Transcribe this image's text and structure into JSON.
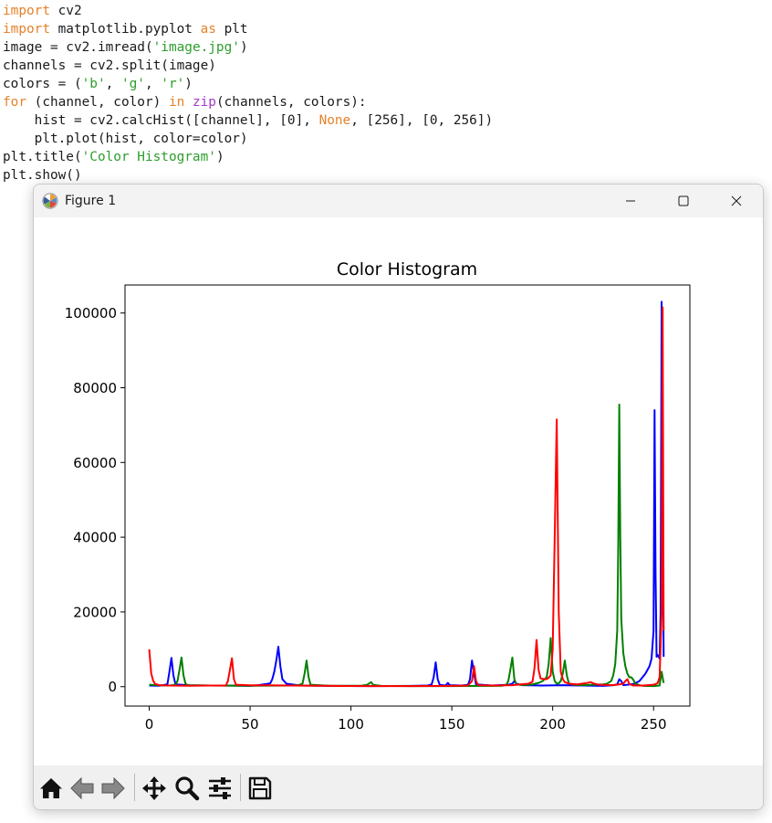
{
  "code_lines": [
    [
      {
        "t": "import",
        "c": "kw"
      },
      {
        "t": " cv2",
        "c": ""
      }
    ],
    [
      {
        "t": "import",
        "c": "kw"
      },
      {
        "t": " matplotlib.pyplot ",
        "c": ""
      },
      {
        "t": "as",
        "c": "kw"
      },
      {
        "t": " plt",
        "c": ""
      }
    ],
    [
      {
        "t": "image = cv2.imread(",
        "c": ""
      },
      {
        "t": "'image.jpg'",
        "c": "st"
      },
      {
        "t": ")",
        "c": ""
      }
    ],
    [
      {
        "t": "channels = cv2.split(image)",
        "c": ""
      }
    ],
    [
      {
        "t": "colors = (",
        "c": ""
      },
      {
        "t": "'b'",
        "c": "st"
      },
      {
        "t": ", ",
        "c": ""
      },
      {
        "t": "'g'",
        "c": "st"
      },
      {
        "t": ", ",
        "c": ""
      },
      {
        "t": "'r'",
        "c": "st"
      },
      {
        "t": ")",
        "c": ""
      }
    ],
    [
      {
        "t": "for",
        "c": "kw"
      },
      {
        "t": " (channel, color) ",
        "c": ""
      },
      {
        "t": "in",
        "c": "kw"
      },
      {
        "t": " ",
        "c": ""
      },
      {
        "t": "zip",
        "c": "fn"
      },
      {
        "t": "(channels, colors):",
        "c": ""
      }
    ],
    [
      {
        "t": "    hist = cv2.calcHist([channel], [0], ",
        "c": ""
      },
      {
        "t": "None",
        "c": "kw"
      },
      {
        "t": ", [256], [0, 256])",
        "c": ""
      }
    ],
    [
      {
        "t": "    plt.plot(hist, color=color)",
        "c": ""
      }
    ],
    [
      {
        "t": "plt.title(",
        "c": ""
      },
      {
        "t": "'Color Histogram'",
        "c": "st"
      },
      {
        "t": ")",
        "c": ""
      }
    ],
    [
      {
        "t": "plt.show()",
        "c": ""
      }
    ]
  ],
  "window": {
    "title": "Figure 1",
    "icon": "matplotlib-icon",
    "controls": [
      "minimize-icon",
      "maximize-icon",
      "close-icon"
    ]
  },
  "toolbar": {
    "buttons": [
      "home-icon",
      "back-icon",
      "forward-icon",
      "pan-icon",
      "zoom-icon",
      "configure-subplots-icon",
      "save-icon"
    ]
  },
  "chart_data": {
    "type": "line",
    "title": "Color Histogram",
    "xlabel": "",
    "ylabel": "",
    "xlim": [
      -12,
      268
    ],
    "ylim": [
      -5200,
      107500
    ],
    "xticks": [
      0,
      50,
      100,
      150,
      200,
      250
    ],
    "yticks": [
      0,
      20000,
      40000,
      60000,
      80000,
      100000
    ],
    "grid": false,
    "legend": "none",
    "series": [
      {
        "color": "#0000ff",
        "points": [
          [
            0,
            300
          ],
          [
            5,
            250
          ],
          [
            9,
            600
          ],
          [
            10,
            4000
          ],
          [
            11,
            7700
          ],
          [
            12,
            3000
          ],
          [
            13,
            600
          ],
          [
            20,
            350
          ],
          [
            30,
            300
          ],
          [
            45,
            250
          ],
          [
            50,
            200
          ],
          [
            54,
            400
          ],
          [
            58,
            700
          ],
          [
            60,
            900
          ],
          [
            61,
            2000
          ],
          [
            62,
            4000
          ],
          [
            63,
            7000
          ],
          [
            64,
            10700
          ],
          [
            65,
            5500
          ],
          [
            66,
            2000
          ],
          [
            68,
            800
          ],
          [
            75,
            300
          ],
          [
            90,
            200
          ],
          [
            110,
            150
          ],
          [
            130,
            200
          ],
          [
            138,
            300
          ],
          [
            140,
            600
          ],
          [
            141,
            2500
          ],
          [
            142,
            6500
          ],
          [
            143,
            2000
          ],
          [
            144,
            500
          ],
          [
            147,
            300
          ],
          [
            148,
            1000
          ],
          [
            149,
            400
          ],
          [
            155,
            300
          ],
          [
            158,
            500
          ],
          [
            159,
            2000
          ],
          [
            160,
            7000
          ],
          [
            161,
            3500
          ],
          [
            162,
            600
          ],
          [
            170,
            300
          ],
          [
            178,
            500
          ],
          [
            180,
            800
          ],
          [
            181,
            1500
          ],
          [
            182,
            800
          ],
          [
            185,
            400
          ],
          [
            195,
            300
          ],
          [
            205,
            400
          ],
          [
            215,
            300
          ],
          [
            225,
            200
          ],
          [
            230,
            400
          ],
          [
            232,
            600
          ],
          [
            233,
            2000
          ],
          [
            234,
            1500
          ],
          [
            235,
            400
          ],
          [
            240,
            700
          ],
          [
            243,
            1500
          ],
          [
            246,
            3500
          ],
          [
            248,
            5500
          ],
          [
            249,
            7500
          ],
          [
            250,
            15000
          ],
          [
            250.5,
            74000
          ],
          [
            251,
            30000
          ],
          [
            251.5,
            8000
          ],
          [
            252,
            8500
          ],
          [
            253,
            7500
          ],
          [
            253.5,
            20000
          ],
          [
            254,
            103000
          ],
          [
            255,
            8000
          ]
        ]
      },
      {
        "color": "#008000",
        "points": [
          [
            0,
            500
          ],
          [
            5,
            350
          ],
          [
            10,
            300
          ],
          [
            13,
            500
          ],
          [
            14,
            1500
          ],
          [
            15,
            4500
          ],
          [
            16,
            7800
          ],
          [
            17,
            3000
          ],
          [
            18,
            800
          ],
          [
            19,
            400
          ],
          [
            30,
            300
          ],
          [
            50,
            250
          ],
          [
            70,
            300
          ],
          [
            74,
            400
          ],
          [
            76,
            800
          ],
          [
            77,
            3500
          ],
          [
            78,
            7000
          ],
          [
            79,
            2500
          ],
          [
            80,
            500
          ],
          [
            90,
            200
          ],
          [
            105,
            250
          ],
          [
            108,
            500
          ],
          [
            110,
            1200
          ],
          [
            111,
            500
          ],
          [
            115,
            200
          ],
          [
            130,
            150
          ],
          [
            150,
            150
          ],
          [
            170,
            200
          ],
          [
            175,
            250
          ],
          [
            177,
            500
          ],
          [
            178,
            1500
          ],
          [
            179,
            4500
          ],
          [
            180,
            7800
          ],
          [
            181,
            2000
          ],
          [
            182,
            600
          ],
          [
            185,
            400
          ],
          [
            190,
            600
          ],
          [
            193,
            1000
          ],
          [
            195,
            1500
          ],
          [
            197,
            2500
          ],
          [
            198,
            6000
          ],
          [
            199,
            13000
          ],
          [
            200,
            4000
          ],
          [
            201,
            1500
          ],
          [
            202,
            800
          ],
          [
            203,
            900
          ],
          [
            204,
            1500
          ],
          [
            205,
            3500
          ],
          [
            206,
            7000
          ],
          [
            207,
            3000
          ],
          [
            208,
            900
          ],
          [
            210,
            500
          ],
          [
            215,
            400
          ],
          [
            220,
            500
          ],
          [
            225,
            600
          ],
          [
            227,
            800
          ],
          [
            229,
            1500
          ],
          [
            230,
            3000
          ],
          [
            231,
            6000
          ],
          [
            232,
            15000
          ],
          [
            232.5,
            38000
          ],
          [
            233,
            75500
          ],
          [
            233.5,
            40000
          ],
          [
            234,
            18000
          ],
          [
            235,
            9000
          ],
          [
            236,
            5500
          ],
          [
            237,
            3500
          ],
          [
            238,
            2500
          ],
          [
            239,
            2500
          ],
          [
            240,
            1800
          ],
          [
            241,
            800
          ],
          [
            243,
            400
          ],
          [
            245,
            200
          ],
          [
            250,
            150
          ],
          [
            253,
            300
          ],
          [
            254,
            4000
          ],
          [
            255,
            1000
          ]
        ]
      },
      {
        "color": "#ff0000",
        "points": [
          [
            0,
            10000
          ],
          [
            1,
            3500
          ],
          [
            2,
            1500
          ],
          [
            3,
            700
          ],
          [
            5,
            400
          ],
          [
            10,
            300
          ],
          [
            20,
            250
          ],
          [
            30,
            300
          ],
          [
            38,
            300
          ],
          [
            39,
            1500
          ],
          [
            40,
            4500
          ],
          [
            41,
            7600
          ],
          [
            42,
            2000
          ],
          [
            43,
            500
          ],
          [
            50,
            350
          ],
          [
            60,
            350
          ],
          [
            70,
            300
          ],
          [
            90,
            200
          ],
          [
            110,
            150
          ],
          [
            130,
            150
          ],
          [
            150,
            200
          ],
          [
            158,
            300
          ],
          [
            160,
            1500
          ],
          [
            161,
            5500
          ],
          [
            162,
            1500
          ],
          [
            163,
            400
          ],
          [
            170,
            300
          ],
          [
            180,
            400
          ],
          [
            186,
            700
          ],
          [
            188,
            800
          ],
          [
            190,
            1300
          ],
          [
            191,
            5000
          ],
          [
            192,
            12500
          ],
          [
            193,
            4500
          ],
          [
            194,
            2200
          ],
          [
            196,
            2000
          ],
          [
            197,
            2000
          ],
          [
            198,
            2400
          ],
          [
            199,
            3000
          ],
          [
            200,
            10000
          ],
          [
            201,
            40000
          ],
          [
            202,
            71500
          ],
          [
            203,
            20000
          ],
          [
            204,
            4000
          ],
          [
            205,
            2000
          ],
          [
            206,
            1200
          ],
          [
            208,
            800
          ],
          [
            212,
            600
          ],
          [
            216,
            900
          ],
          [
            219,
            1200
          ],
          [
            220,
            900
          ],
          [
            223,
            500
          ],
          [
            230,
            400
          ],
          [
            233,
            600
          ],
          [
            235,
            800
          ],
          [
            236,
            1500
          ],
          [
            237,
            2000
          ],
          [
            238,
            700
          ],
          [
            240,
            300
          ],
          [
            245,
            300
          ],
          [
            250,
            500
          ],
          [
            252,
            900
          ],
          [
            253,
            2500
          ],
          [
            254,
            20000
          ],
          [
            254.5,
            101500
          ],
          [
            255,
            15000
          ]
        ]
      }
    ]
  }
}
